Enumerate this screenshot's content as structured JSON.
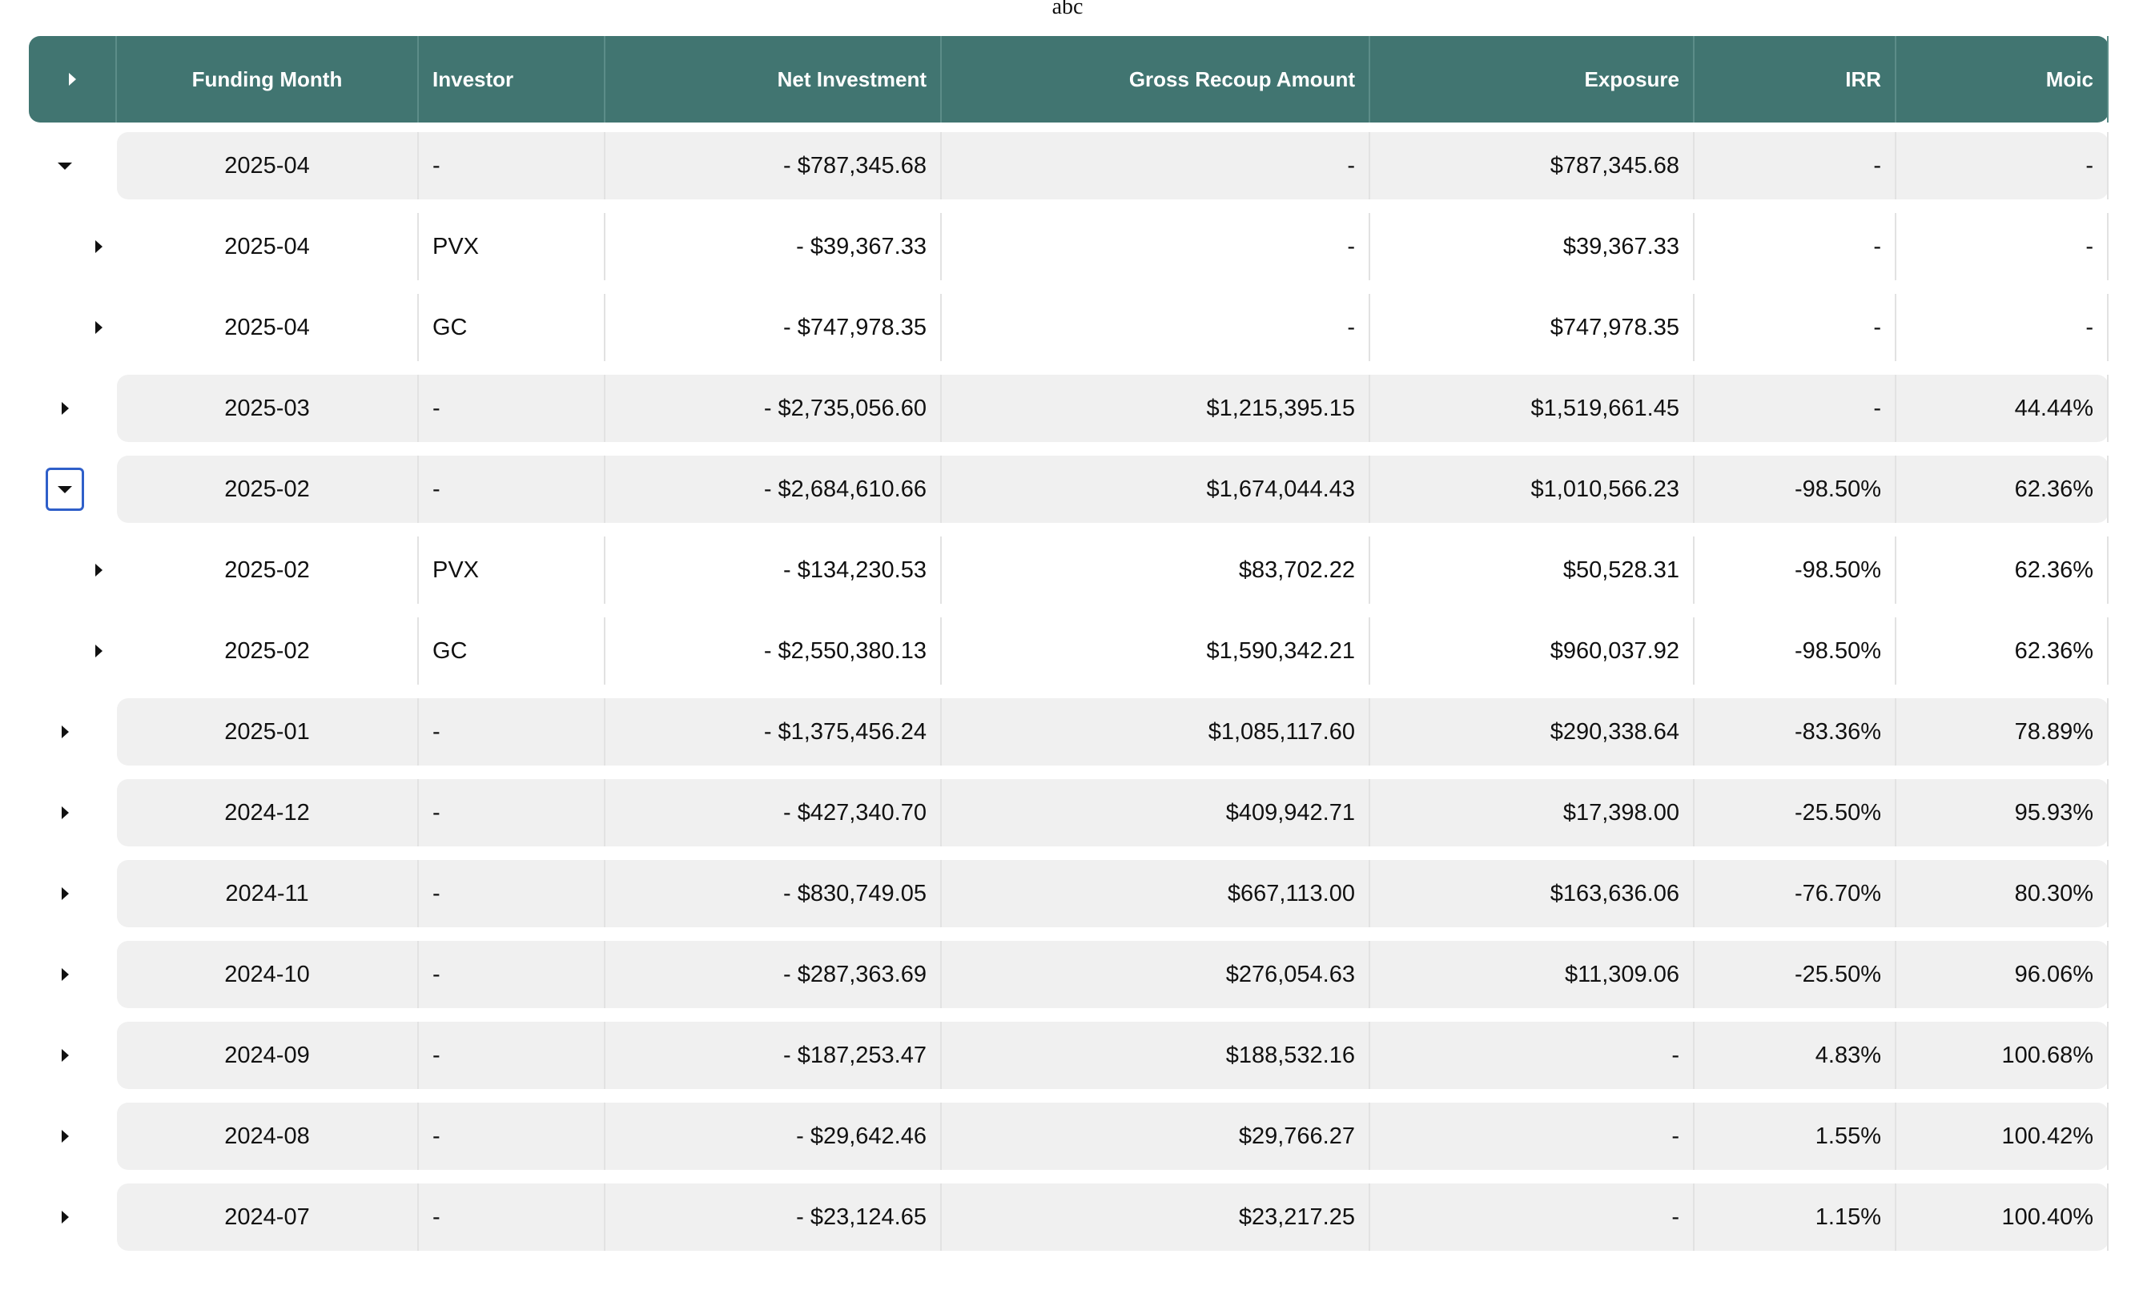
{
  "caption": "abc",
  "columns": {
    "month": "Funding Month",
    "investor": "Investor",
    "net": "Net Investment",
    "gross": "Gross Recoup Amount",
    "exposure": "Exposure",
    "irr": "IRR",
    "moic": "Moic"
  },
  "rows": [
    {
      "level": 0,
      "expanded": true,
      "focused": false,
      "month": "2025-04",
      "investor": "-",
      "net": "- $787,345.68",
      "gross": "-",
      "exposure": "$787,345.68",
      "irr": "-",
      "moic": "-"
    },
    {
      "level": 1,
      "expanded": false,
      "focused": false,
      "month": "2025-04",
      "investor": "PVX",
      "net": "- $39,367.33",
      "gross": "-",
      "exposure": "$39,367.33",
      "irr": "-",
      "moic": "-"
    },
    {
      "level": 1,
      "expanded": false,
      "focused": false,
      "month": "2025-04",
      "investor": "GC",
      "net": "- $747,978.35",
      "gross": "-",
      "exposure": "$747,978.35",
      "irr": "-",
      "moic": "-"
    },
    {
      "level": 0,
      "expanded": false,
      "focused": false,
      "month": "2025-03",
      "investor": "-",
      "net": "- $2,735,056.60",
      "gross": "$1,215,395.15",
      "exposure": "$1,519,661.45",
      "irr": "-",
      "moic": "44.44%"
    },
    {
      "level": 0,
      "expanded": true,
      "focused": true,
      "month": "2025-02",
      "investor": "-",
      "net": "- $2,684,610.66",
      "gross": "$1,674,044.43",
      "exposure": "$1,010,566.23",
      "irr": "-98.50%",
      "moic": "62.36%"
    },
    {
      "level": 1,
      "expanded": false,
      "focused": false,
      "month": "2025-02",
      "investor": "PVX",
      "net": "- $134,230.53",
      "gross": "$83,702.22",
      "exposure": "$50,528.31",
      "irr": "-98.50%",
      "moic": "62.36%"
    },
    {
      "level": 1,
      "expanded": false,
      "focused": false,
      "month": "2025-02",
      "investor": "GC",
      "net": "- $2,550,380.13",
      "gross": "$1,590,342.21",
      "exposure": "$960,037.92",
      "irr": "-98.50%",
      "moic": "62.36%"
    },
    {
      "level": 0,
      "expanded": false,
      "focused": false,
      "month": "2025-01",
      "investor": "-",
      "net": "- $1,375,456.24",
      "gross": "$1,085,117.60",
      "exposure": "$290,338.64",
      "irr": "-83.36%",
      "moic": "78.89%"
    },
    {
      "level": 0,
      "expanded": false,
      "focused": false,
      "month": "2024-12",
      "investor": "-",
      "net": "- $427,340.70",
      "gross": "$409,942.71",
      "exposure": "$17,398.00",
      "irr": "-25.50%",
      "moic": "95.93%"
    },
    {
      "level": 0,
      "expanded": false,
      "focused": false,
      "month": "2024-11",
      "investor": "-",
      "net": "- $830,749.05",
      "gross": "$667,113.00",
      "exposure": "$163,636.06",
      "irr": "-76.70%",
      "moic": "80.30%"
    },
    {
      "level": 0,
      "expanded": false,
      "focused": false,
      "month": "2024-10",
      "investor": "-",
      "net": "- $287,363.69",
      "gross": "$276,054.63",
      "exposure": "$11,309.06",
      "irr": "-25.50%",
      "moic": "96.06%"
    },
    {
      "level": 0,
      "expanded": false,
      "focused": false,
      "month": "2024-09",
      "investor": "-",
      "net": "- $187,253.47",
      "gross": "$188,532.16",
      "exposure": "-",
      "irr": "4.83%",
      "moic": "100.68%"
    },
    {
      "level": 0,
      "expanded": false,
      "focused": false,
      "month": "2024-08",
      "investor": "-",
      "net": "- $29,642.46",
      "gross": "$29,766.27",
      "exposure": "-",
      "irr": "1.55%",
      "moic": "100.42%"
    },
    {
      "level": 0,
      "expanded": false,
      "focused": false,
      "month": "2024-07",
      "investor": "-",
      "net": "- $23,124.65",
      "gross": "$23,217.25",
      "exposure": "-",
      "irr": "1.15%",
      "moic": "100.40%"
    }
  ]
}
